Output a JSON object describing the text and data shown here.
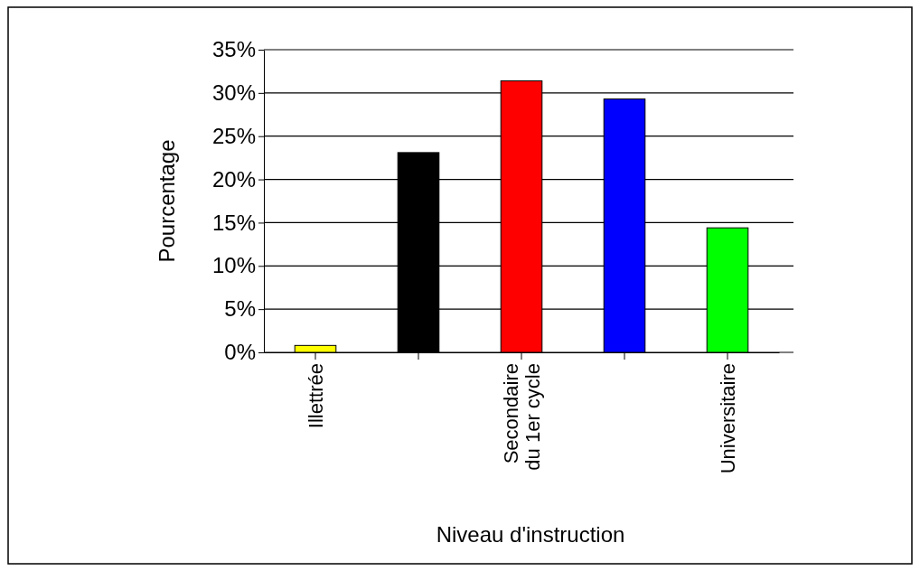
{
  "chart_data": {
    "type": "bar",
    "xlabel": "Niveau d'instruction",
    "ylabel": "Pourcentage",
    "categories": [
      "Illettrée",
      null,
      "Secondaire du 1er cycle",
      null,
      "Universitaire"
    ],
    "values": [
      0.8,
      23.1,
      31.4,
      29.3,
      14.4
    ],
    "colors": [
      "#ffff00",
      "#000000",
      "#ff0000",
      "#0000ff",
      "#00ff00"
    ],
    "ylim": [
      0,
      35
    ],
    "yticks": [
      {
        "value": 0,
        "label": "0%"
      },
      {
        "value": 5,
        "label": "5%"
      },
      {
        "value": 10,
        "label": "10%"
      },
      {
        "value": 15,
        "label": "15%"
      },
      {
        "value": 20,
        "label": "20%"
      },
      {
        "value": 25,
        "label": "25%"
      },
      {
        "value": 30,
        "label": "30%"
      },
      {
        "value": 35,
        "label": "35%"
      }
    ],
    "grid": "y"
  }
}
